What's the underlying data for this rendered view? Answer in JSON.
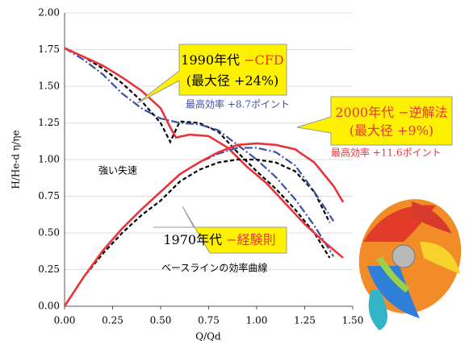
{
  "chart_data": {
    "type": "line",
    "xlabel": "Q/Qd",
    "ylabel": "H/He-d  η/ηe",
    "xlim": [
      0,
      1.5
    ],
    "ylim": [
      0,
      2
    ],
    "xticks": [
      {
        "value": 0,
        "label": "0.00"
      },
      {
        "value": 0.25,
        "label": "0.25"
      },
      {
        "value": 0.5,
        "label": "0.50"
      },
      {
        "value": 0.75,
        "label": "0.75"
      },
      {
        "value": 1,
        "label": "1.00"
      },
      {
        "value": 1.25,
        "label": "1.25"
      },
      {
        "value": 1.5,
        "label": "1.50"
      }
    ],
    "yticks": [
      {
        "value": 0,
        "label": "0.00"
      },
      {
        "value": 0.25,
        "label": "0.25"
      },
      {
        "value": 0.5,
        "label": "0.50"
      },
      {
        "value": 0.75,
        "label": "0.75"
      },
      {
        "value": 1,
        "label": "1.00"
      },
      {
        "value": 1.25,
        "label": "1.25"
      },
      {
        "value": 1.5,
        "label": "1.50"
      },
      {
        "value": 1.75,
        "label": "1.75"
      },
      {
        "value": 2,
        "label": "2.00"
      }
    ],
    "grid": true,
    "series": [
      {
        "color": "#000000",
        "dash": "5,3",
        "x": [
          0,
          0.1,
          0.2,
          0.3,
          0.4,
          0.5,
          0.55,
          0.6,
          0.7,
          0.8,
          0.9,
          1.0,
          1.1,
          1.2,
          1.3,
          1.38
        ],
        "values": [
          1.76,
          1.7,
          1.62,
          1.52,
          1.4,
          1.25,
          1.12,
          1.26,
          1.25,
          1.19,
          1.05,
          0.92,
          0.8,
          0.66,
          0.5,
          0.33
        ]
      },
      {
        "color": "#3a4fa8",
        "dash": "10,3,2,3",
        "x": [
          0,
          0.1,
          0.2,
          0.3,
          0.4,
          0.5,
          0.6,
          0.7,
          0.8,
          0.9,
          1.0,
          1.1,
          1.2,
          1.3,
          1.4
        ],
        "values": [
          1.76,
          1.68,
          1.58,
          1.45,
          1.35,
          1.28,
          1.25,
          1.24,
          1.2,
          1.1,
          1.0,
          0.88,
          0.73,
          0.55,
          0.34
        ]
      },
      {
        "color": "#e8343a",
        "dash": "",
        "x": [
          0,
          0.1,
          0.2,
          0.3,
          0.4,
          0.5,
          0.55,
          0.58,
          0.65,
          0.75,
          0.85,
          0.95,
          1.05,
          1.15,
          1.25,
          1.35,
          1.45
        ],
        "values": [
          1.76,
          1.7,
          1.64,
          1.56,
          1.47,
          1.35,
          1.22,
          1.15,
          1.17,
          1.16,
          1.08,
          0.95,
          0.84,
          0.7,
          0.56,
          0.44,
          0.33
        ]
      },
      {
        "color": "#000000",
        "dash": "5,3",
        "x": [
          0,
          0.1,
          0.2,
          0.3,
          0.4,
          0.5,
          0.6,
          0.7,
          0.8,
          0.9,
          1.0,
          1.1,
          1.2,
          1.3,
          1.38
        ],
        "values": [
          0,
          0.2,
          0.36,
          0.5,
          0.62,
          0.72,
          0.85,
          0.93,
          0.98,
          1.0,
          1.0,
          0.98,
          0.92,
          0.78,
          0.57
        ]
      },
      {
        "color": "#3a4fa8",
        "dash": "10,3,2,3",
        "x": [
          0,
          0.1,
          0.2,
          0.3,
          0.4,
          0.5,
          0.6,
          0.7,
          0.8,
          0.9,
          1.0,
          1.1,
          1.2,
          1.3,
          1.4
        ],
        "values": [
          0,
          0.2,
          0.38,
          0.53,
          0.66,
          0.78,
          0.9,
          0.98,
          1.04,
          1.08,
          1.08,
          1.05,
          0.96,
          0.78,
          0.58
        ]
      },
      {
        "color": "#e8343a",
        "dash": "",
        "x": [
          0,
          0.1,
          0.2,
          0.3,
          0.4,
          0.5,
          0.6,
          0.7,
          0.8,
          0.9,
          1.0,
          1.1,
          1.2,
          1.3,
          1.4,
          1.45
        ],
        "values": [
          0,
          0.2,
          0.38,
          0.53,
          0.66,
          0.78,
          0.9,
          0.98,
          1.05,
          1.1,
          1.11,
          1.1,
          1.07,
          0.98,
          0.82,
          0.71
        ]
      }
    ],
    "annotations": {
      "c1990_era": "1990年代",
      "c1990_method": "−CFD",
      "c1990_size": "(最大径 +24%)",
      "c1990_eff": "最高効率 +8.7ポイント",
      "c2000_era": "2000年代",
      "c2000_method": "−逆解法",
      "c2000_size": "(最大径 +9%)",
      "c2000_eff": "最高効率 +11.6ポイント",
      "c1970_era": "1970年代",
      "c1970_method": "−経験則",
      "stall": "強い失速",
      "baseline": "ベースラインの効率曲線"
    }
  }
}
